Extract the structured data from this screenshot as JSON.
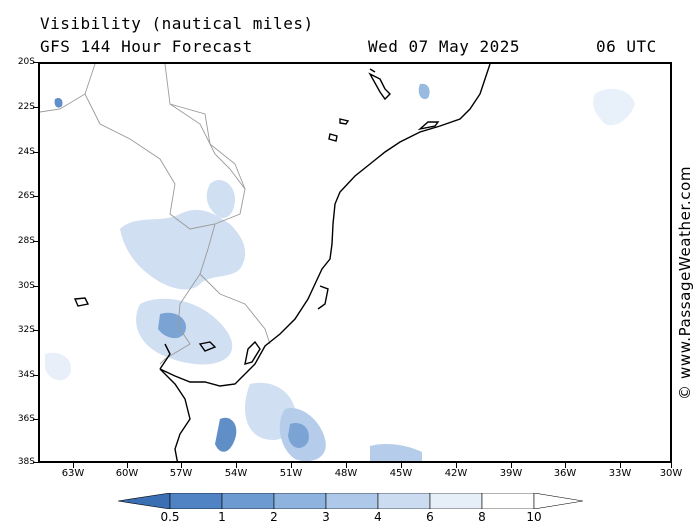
{
  "header": {
    "title_line1": "Visibility (nautical miles)",
    "title_line2": "GFS 144 Hour Forecast",
    "date": "Wed 07 May 2025",
    "time": "06 UTC"
  },
  "credit": "© www.PassageWeather.com",
  "axes": {
    "lat_labels": [
      "20S",
      "22S",
      "24S",
      "26S",
      "28S",
      "30S",
      "32S",
      "34S",
      "36S",
      "38S"
    ],
    "lon_labels": [
      "63W",
      "60W",
      "57W",
      "54W",
      "51W",
      "48W",
      "45W",
      "42W",
      "39W",
      "36W",
      "33W",
      "30W"
    ]
  },
  "legend": {
    "labels": [
      "0.5",
      "1",
      "2",
      "3",
      "4",
      "6",
      "8",
      "10"
    ],
    "colors": [
      "#3a6fb4",
      "#4f83c3",
      "#6d9bd1",
      "#8db3de",
      "#adc8e8",
      "#cbdcf0",
      "#e6eef8",
      "#ffffff"
    ]
  },
  "colors": {
    "land_border": "#9a9a9a",
    "coast": "#000000"
  }
}
